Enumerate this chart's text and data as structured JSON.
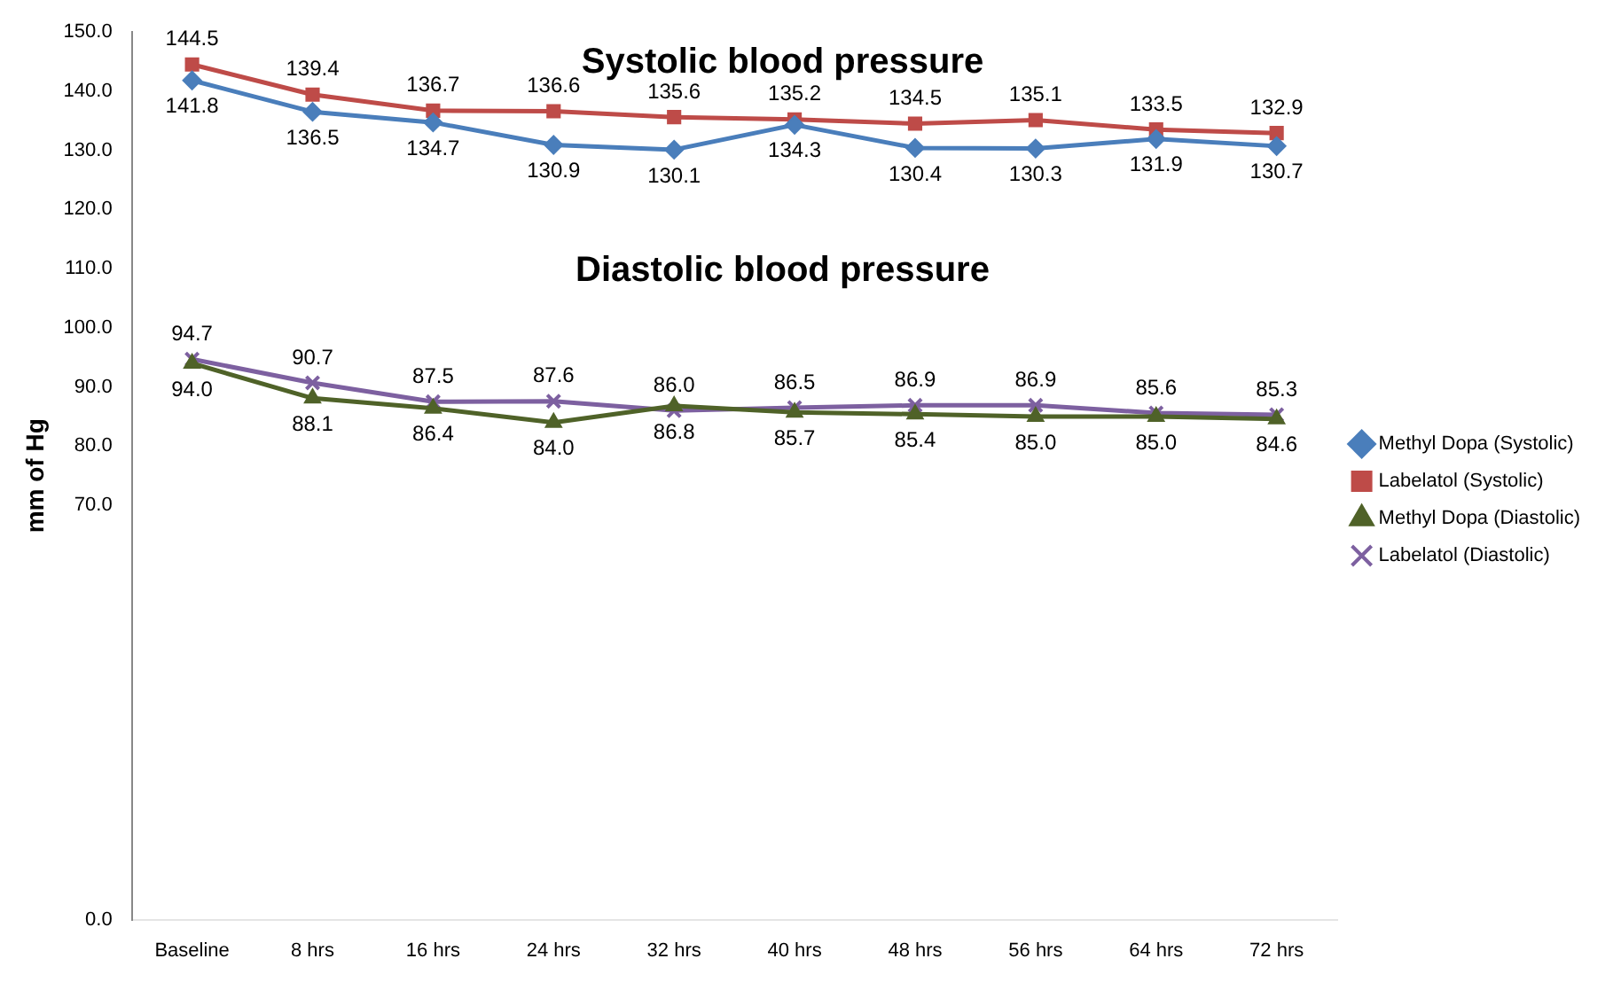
{
  "chart_data": {
    "type": "line",
    "ylabel": "mm of Hg",
    "categories": [
      "Baseline",
      "8 hrs",
      "16 hrs",
      "24 hrs",
      "32 hrs",
      "40 hrs",
      "48 hrs",
      "56 hrs",
      "64 hrs",
      "72 hrs"
    ],
    "ylim": [
      0,
      150
    ],
    "yticks": [
      {
        "value": 0,
        "label": "0.0"
      },
      {
        "value": 70,
        "label": "70.0"
      },
      {
        "value": 80,
        "label": "80.0"
      },
      {
        "value": 90,
        "label": "90.0"
      },
      {
        "value": 100,
        "label": "100.0"
      },
      {
        "value": 110,
        "label": "110.0"
      },
      {
        "value": 120,
        "label": "120.0"
      },
      {
        "value": 130,
        "label": "130.0"
      },
      {
        "value": 140,
        "label": "140.0"
      },
      {
        "value": 150,
        "label": "150.0"
      }
    ],
    "legend": "right",
    "annotations": [
      "Systolic blood pressure",
      "Diastolic blood pressure"
    ],
    "series": [
      {
        "name": "Methyl Dopa (Systolic)",
        "color": "#4a7ebb",
        "marker": "diamond",
        "values": [
          141.8,
          136.5,
          134.7,
          130.9,
          130.1,
          134.3,
          130.4,
          130.3,
          131.9,
          130.7
        ],
        "value_labels": [
          "141.8",
          "136.5",
          "134.7",
          "130.9",
          "130.1",
          "134.3",
          "130.4",
          "130.3",
          "131.9",
          "130.7"
        ]
      },
      {
        "name": "Labelatol (Systolic)",
        "color": "#be4b48",
        "marker": "square",
        "values": [
          144.5,
          139.4,
          136.7,
          136.6,
          135.6,
          135.2,
          134.5,
          135.1,
          133.5,
          132.9
        ],
        "value_labels": [
          "144.5",
          "139.4",
          "136.7",
          "136.6",
          "135.6",
          "135.2",
          "134.5",
          "135.1",
          "133.5",
          "132.9"
        ]
      },
      {
        "name": "Methyl Dopa (Diastolic)",
        "color": "#4f6228",
        "marker": "triangle",
        "values": [
          94.0,
          88.1,
          86.4,
          84.0,
          86.8,
          85.7,
          85.4,
          85.0,
          85.0,
          84.6
        ],
        "value_labels": [
          "94.0",
          "88.1",
          "86.4",
          "84.0",
          "86.8",
          "85.7",
          "85.4",
          "85.0",
          "85.0",
          "84.6"
        ]
      },
      {
        "name": "Labelatol (Diastolic)",
        "color": "#7d60a0",
        "marker": "cross",
        "values": [
          94.7,
          90.7,
          87.5,
          87.6,
          86.0,
          86.5,
          86.9,
          86.9,
          85.6,
          85.3
        ],
        "value_labels": [
          "94.7",
          "90.7",
          "87.5",
          "87.6",
          "86.0",
          "86.5",
          "86.9",
          "86.9",
          "85.6",
          "85.3"
        ]
      }
    ]
  }
}
